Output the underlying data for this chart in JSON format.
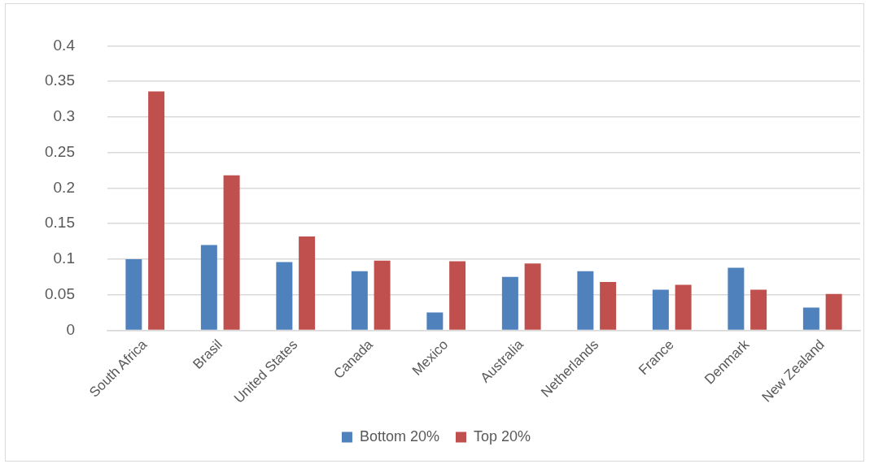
{
  "chart_data": {
    "type": "bar",
    "categories": [
      "South Africa",
      "Brasil",
      "United States",
      "Canada",
      "Mexico",
      "Australia",
      "Netherlands",
      "France",
      "Denmark",
      "New Zealand"
    ],
    "series": [
      {
        "name": "Bottom 20%",
        "color": "#4f81bd",
        "values": [
          0.1,
          0.12,
          0.096,
          0.083,
          0.025,
          0.075,
          0.083,
          0.057,
          0.088,
          0.032
        ]
      },
      {
        "name": "Top 20%",
        "color": "#c0504d",
        "values": [
          0.336,
          0.218,
          0.132,
          0.098,
          0.097,
          0.094,
          0.068,
          0.064,
          0.057,
          0.051
        ]
      }
    ],
    "ylim": [
      0,
      0.4
    ],
    "yticks": [
      0,
      0.05,
      0.1,
      0.15,
      0.2,
      0.25,
      0.3,
      0.35,
      0.4
    ],
    "grid": "y",
    "legend": "bottom"
  }
}
